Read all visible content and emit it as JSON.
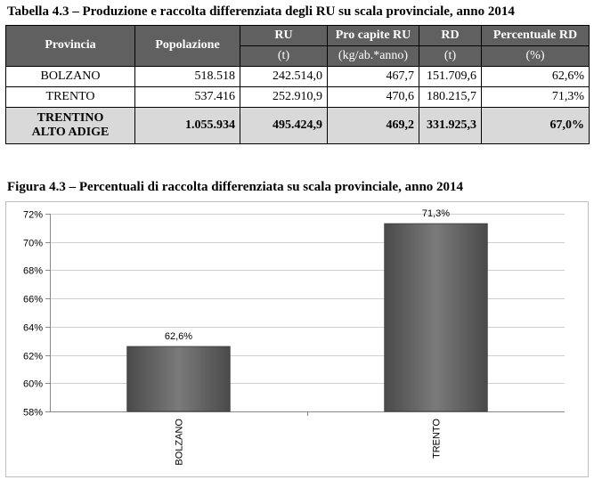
{
  "table": {
    "caption": "Tabella 4.3 – Produzione e raccolta differenziata degli RU su scala provinciale, anno 2014",
    "headers": {
      "provincia": "Provincia",
      "popolazione": "Popolazione",
      "ru": "RU",
      "ru_unit": "(t)",
      "procapite": "Pro capite RU",
      "procapite_unit": "(kg/ab.*anno)",
      "rd": "RD",
      "rd_unit": "(t)",
      "perc": "Percentuale RD",
      "perc_unit": "(%)"
    },
    "rows": [
      {
        "name": "BOLZANO",
        "popolazione": "518.518",
        "ru": "242.514,0",
        "procapite": "467,7",
        "rd": "151.709,6",
        "perc": "62,6%"
      },
      {
        "name": "TRENTO",
        "popolazione": "537.416",
        "ru": "252.910,9",
        "procapite": "470,6",
        "rd": "180.215,7",
        "perc": "71,3%"
      }
    ],
    "total": {
      "name_line1": "TRENTINO",
      "name_line2": "ALTO ADIGE",
      "popolazione": "1.055.934",
      "ru": "495.424,9",
      "procapite": "469,2",
      "rd": "331.925,3",
      "perc": "67,0%"
    }
  },
  "chart_data": {
    "type": "bar",
    "title": "Figura 4.3 – Percentuali di raccolta differenziata su scala provinciale, anno 2014",
    "categories": [
      "BOLZANO",
      "TRENTO"
    ],
    "values": [
      62.6,
      71.3
    ],
    "data_labels": [
      "62,6%",
      "71,3%"
    ],
    "ylim": [
      58,
      72
    ],
    "yticks": [
      58,
      60,
      62,
      64,
      66,
      68,
      70,
      72
    ],
    "ytick_labels": [
      "58%",
      "60%",
      "62%",
      "64%",
      "66%",
      "68%",
      "70%",
      "72%"
    ],
    "grid": true,
    "legend": "none",
    "bar_color": "#6e6e6e",
    "grid_color": "#d0d0d0"
  }
}
